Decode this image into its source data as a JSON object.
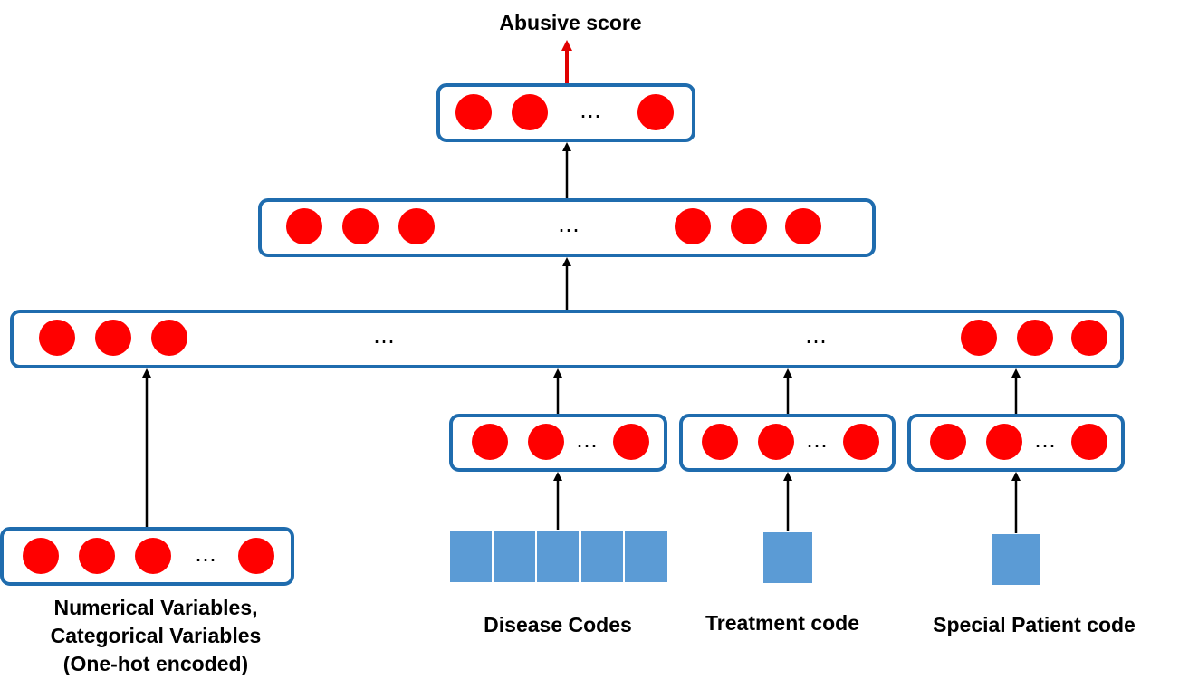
{
  "output_label": "Abusive score",
  "ellipsis": "…",
  "input_labels": {
    "numerical": [
      "Numerical Variables,",
      "Categorical Variables",
      "(One-hot encoded)"
    ],
    "disease": "Disease Codes",
    "treatment": "Treatment code",
    "special": "Special Patient code"
  },
  "colors": {
    "box_border": "#1f6cae",
    "node_fill": "#ff0000",
    "input_square": "#5b9bd5",
    "output_arrow": "#e00000",
    "arrow": "#000000"
  }
}
